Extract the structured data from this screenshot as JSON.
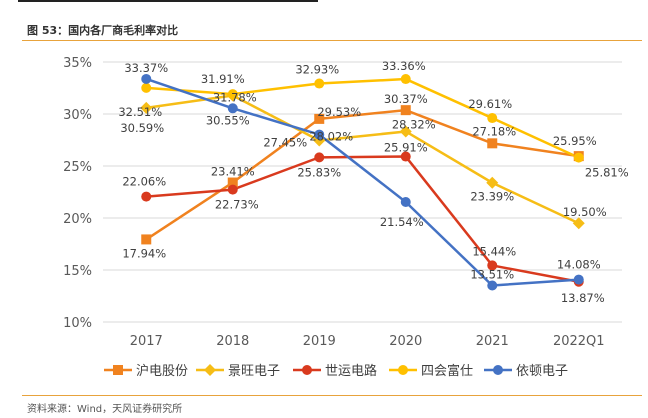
{
  "figure": {
    "title": "图 53：国内各厂商毛利率对比",
    "source": "资料来源：Wind，天风证券研究所"
  },
  "chart_data": {
    "type": "line",
    "title": "",
    "xlabel": "",
    "ylabel": "",
    "categories": [
      "2017",
      "2018",
      "2019",
      "2020",
      "2021",
      "2022Q1"
    ],
    "ylim": [
      10,
      35
    ],
    "yticks": [
      "10%",
      "15%",
      "20%",
      "25%",
      "30%",
      "35%"
    ],
    "grid": "horizontal",
    "legend_position": "bottom",
    "series": [
      {
        "name": "沪电股份",
        "color": "#f0821f",
        "marker": "square",
        "values": [
          17.94,
          23.41,
          29.53,
          30.37,
          27.18,
          25.95
        ],
        "labels": [
          "17.94%",
          "23.41%",
          "29.53%",
          "30.37%",
          "27.18%",
          "25.95%"
        ]
      },
      {
        "name": "景旺电子",
        "color": "#f6bd16",
        "marker": "diamond",
        "values": [
          30.59,
          31.78,
          27.45,
          28.32,
          23.39,
          19.5
        ],
        "labels": [
          "30.59%",
          "31.78%",
          "27.45%",
          "28.32%",
          "23.39%",
          "19.50%"
        ]
      },
      {
        "name": "世运电路",
        "color": "#d93a1e",
        "marker": "circle",
        "values": [
          22.06,
          22.73,
          25.83,
          25.91,
          15.44,
          13.87
        ],
        "labels": [
          "22.06%",
          "22.73%",
          "25.83%",
          "25.91%",
          "15.44%",
          "13.87%"
        ]
      },
      {
        "name": "四会富仕",
        "color": "#ffc000",
        "marker": "circle",
        "values": [
          32.51,
          31.91,
          32.93,
          33.36,
          29.61,
          25.81
        ],
        "labels": [
          "32.51%",
          "31.91%",
          "32.93%",
          "33.36%",
          "29.61%",
          "25.81%"
        ]
      },
      {
        "name": "依顿电子",
        "color": "#4472c4",
        "marker": "circle",
        "values": [
          33.37,
          30.55,
          28.02,
          21.54,
          13.51,
          14.08
        ],
        "labels": [
          "33.37%",
          "30.55%",
          "28.02%",
          "21.54%",
          "13.51%",
          "14.08%"
        ]
      }
    ]
  }
}
